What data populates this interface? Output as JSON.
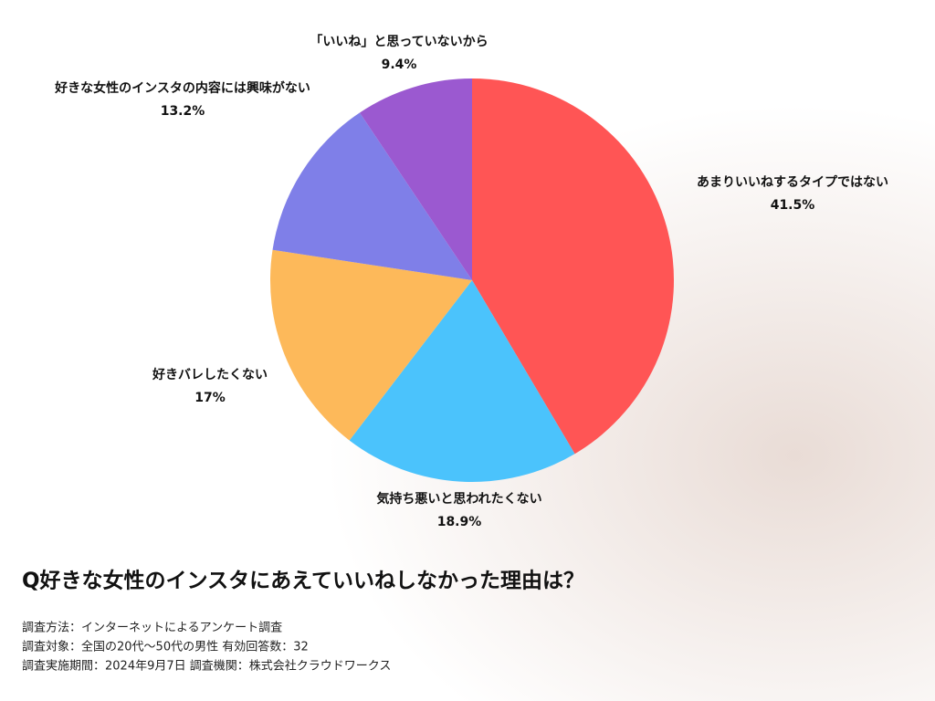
{
  "chart_data": {
    "type": "pie",
    "title": "Q好きな女性のインスタにあえていいねしなかった理由は？",
    "categories": [
      "あまりいいねするタイプではない",
      "気持ち悪いと思われたくない",
      "好きバレしたくない",
      "好きな女性のインスタの内容には興味がない",
      "「いいね」と思っていないから"
    ],
    "values": [
      41.5,
      18.9,
      17,
      13.2,
      9.4
    ],
    "value_labels": [
      "41.5%",
      "18.9%",
      "17%",
      "13.2%",
      "9.4%"
    ],
    "colors": [
      "#ff5555",
      "#4bc3fc",
      "#fdb95a",
      "#7f7fe8",
      "#9b59d0"
    ],
    "notes": [
      "調査方法：インターネットによるアンケート調査",
      "調査対象：全国の20代～50代の男性 有効回答数：32",
      "調査実施期間：2024年9月7日 調査機関：株式会社クラウドワークス"
    ]
  }
}
